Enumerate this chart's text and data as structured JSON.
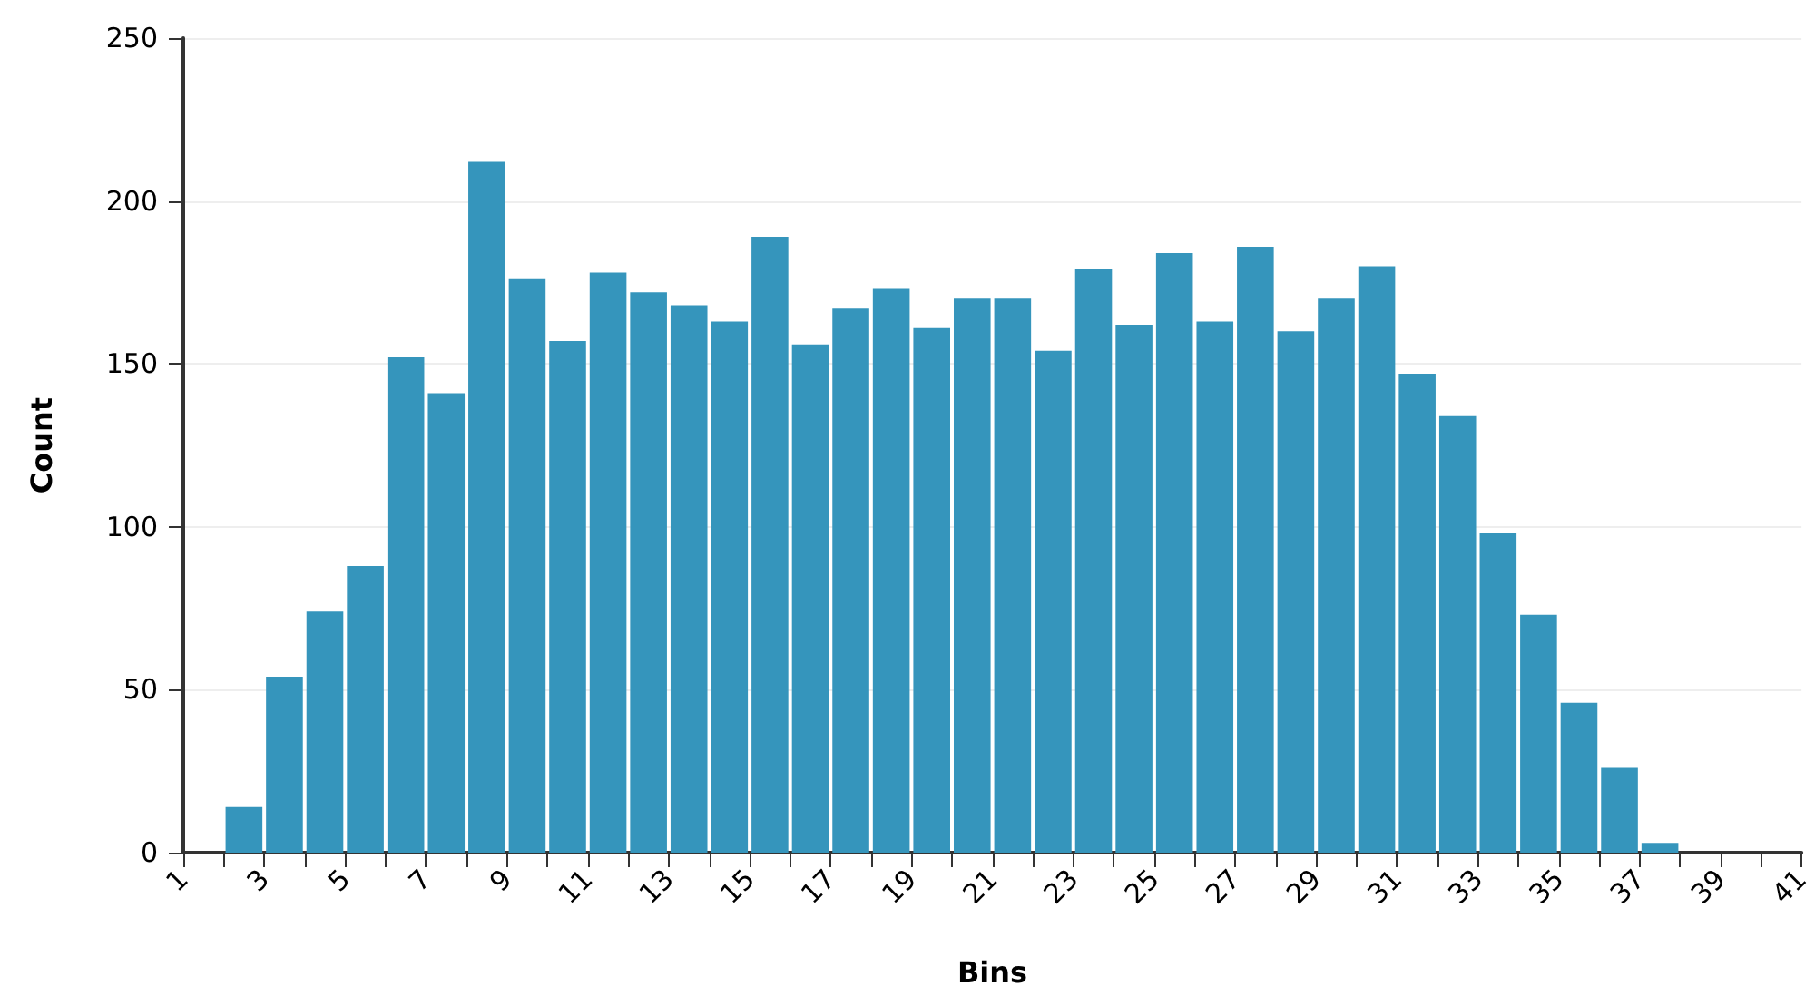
{
  "chart_data": {
    "type": "histogram",
    "xlabel": "Bins",
    "ylabel": "Count",
    "color": "#3595bc",
    "bins": [
      1,
      2,
      3,
      4,
      5,
      6,
      7,
      8,
      9,
      10,
      11,
      12,
      13,
      14,
      15,
      16,
      17,
      18,
      19,
      20,
      21,
      22,
      23,
      24,
      25,
      26,
      27,
      28,
      29,
      30,
      31,
      32,
      33,
      34,
      35,
      36,
      37,
      38,
      39,
      40,
      41
    ],
    "values": [
      0,
      14,
      54,
      74,
      88,
      152,
      141,
      212,
      176,
      157,
      178,
      172,
      168,
      163,
      189,
      156,
      167,
      173,
      161,
      170,
      170,
      154,
      179,
      162,
      184,
      163,
      186,
      160,
      170,
      180,
      147,
      134,
      98,
      73,
      46,
      26,
      3,
      0,
      0,
      0
    ],
    "xlim": [
      1,
      41
    ],
    "xticks": [
      1,
      {
        "value": 2,
        "label": null
      },
      3,
      {
        "value": 4,
        "label": null
      },
      5,
      {
        "value": 6,
        "label": null
      },
      7,
      {
        "value": 8,
        "label": null
      },
      9,
      {
        "value": 10,
        "label": null
      },
      11,
      {
        "value": 12,
        "label": null
      },
      13,
      {
        "value": 14,
        "label": null
      },
      15,
      {
        "value": 16,
        "label": null
      },
      17,
      {
        "value": 18,
        "label": null
      },
      19,
      {
        "value": 20,
        "label": null
      },
      21,
      {
        "value": 22,
        "label": null
      },
      23,
      {
        "value": 24,
        "label": null
      },
      25,
      {
        "value": 26,
        "label": null
      },
      27,
      {
        "value": 28,
        "label": null
      },
      29,
      {
        "value": 30,
        "label": null
      },
      31,
      {
        "value": 32,
        "label": null
      },
      33,
      {
        "value": 34,
        "label": null
      },
      35,
      {
        "value": 36,
        "label": null
      },
      37,
      {
        "value": 38,
        "label": null
      },
      39,
      {
        "value": 40,
        "label": null
      },
      41
    ],
    "ylim": [
      0,
      250
    ],
    "yticks": [
      0,
      50,
      100,
      150,
      200,
      250
    ],
    "grid": "y"
  }
}
